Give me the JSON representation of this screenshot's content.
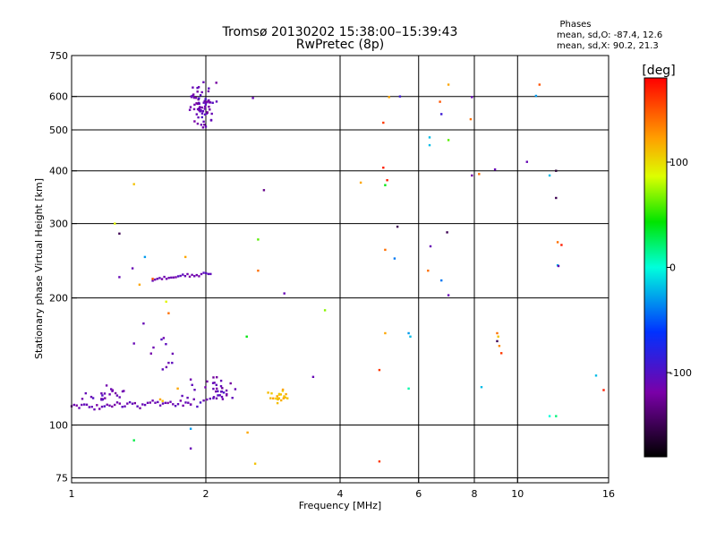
{
  "chart_data": {
    "type": "scatter",
    "title": "Tromsø 20130202 15:38:00–15:39:43",
    "subtitle": "RwPretec (8p)",
    "xlabel": "Frequency [MHz]",
    "ylabel": "Stationary phase Virtual Height [km]",
    "xscale": "log2",
    "yscale": "log",
    "xlim": [
      1,
      16
    ],
    "ylim": [
      73,
      750
    ],
    "xticks": [
      1,
      2,
      4,
      6,
      8,
      10,
      16
    ],
    "xtick_labels": [
      "1",
      "2",
      "4",
      "6",
      "8",
      "10",
      "16"
    ],
    "yticks": [
      75,
      100,
      200,
      300,
      400,
      500,
      600,
      750
    ],
    "ytick_labels": [
      "75",
      "100",
      "200",
      "300",
      "400",
      "500",
      "600",
      "750"
    ],
    "grid": true,
    "phases_title": "Phases",
    "phases_line1": "mean, sd,O: -87.4, 12.6",
    "phases_line2": "mean, sd,X:  90.2, 21.3",
    "colorbar": {
      "label": "[deg]",
      "range": [
        -180,
        180
      ],
      "tick_values": [
        100,
        0,
        -100
      ],
      "tick_labels": [
        "100",
        "0",
        "-100"
      ]
    },
    "traces": [
      {
        "f0": 1.0,
        "f1": 1.85,
        "h0": 110,
        "h1": 113,
        "n": 48,
        "jitter": 1.5,
        "phase": -110
      },
      {
        "f0": 1.85,
        "f1": 2.15,
        "h0": 113,
        "h1": 116,
        "n": 10,
        "jitter": 2,
        "phase": -110
      },
      {
        "f0": 1.52,
        "f1": 2.05,
        "h0": 221,
        "h1": 229,
        "n": 26,
        "jitter": 1.5,
        "phase": -110
      }
    ],
    "clusters": [
      {
        "fc": 1.95,
        "fs": 0.09,
        "hc": 570,
        "hs": 45,
        "n": 70,
        "phase": -110
      },
      {
        "fc": 1.18,
        "fs": 0.09,
        "hc": 117,
        "hs": 4,
        "n": 22,
        "phase": -110
      },
      {
        "fc": 2.1,
        "fs": 0.22,
        "hc": 121,
        "hs": 6,
        "n": 32,
        "phase": -110
      },
      {
        "fc": 2.9,
        "fs": 0.12,
        "hc": 117,
        "hs": 2.5,
        "n": 22,
        "phase": 110
      },
      {
        "fc": 1.62,
        "fs": 0.08,
        "hc": 148,
        "hs": 12,
        "n": 10,
        "phase": -110
      }
    ],
    "points": [
      [
        2.55,
        595,
        -110
      ],
      [
        2.7,
        360,
        -130
      ],
      [
        2.62,
        275,
        60
      ],
      [
        2.62,
        232,
        140
      ],
      [
        3.0,
        205,
        -110
      ],
      [
        3.7,
        187,
        70
      ],
      [
        3.48,
        130,
        -110
      ],
      [
        2.47,
        162,
        40
      ],
      [
        2.48,
        96,
        120
      ],
      [
        2.58,
        81,
        110
      ],
      [
        1.85,
        98,
        -30
      ],
      [
        1.85,
        88,
        -110
      ],
      [
        1.38,
        92,
        30
      ],
      [
        1.38,
        372,
        110
      ],
      [
        1.28,
        284,
        -150
      ],
      [
        1.25,
        300,
        90
      ],
      [
        1.37,
        235,
        -110
      ],
      [
        1.46,
        250,
        -30
      ],
      [
        1.52,
        222,
        150
      ],
      [
        1.28,
        224,
        -110
      ],
      [
        1.42,
        215,
        120
      ],
      [
        1.65,
        184,
        140
      ],
      [
        1.45,
        174,
        -110
      ],
      [
        1.38,
        156,
        -110
      ],
      [
        1.63,
        196,
        90
      ],
      [
        1.8,
        250,
        120
      ],
      [
        1.73,
        122,
        120
      ],
      [
        1.6,
        114,
        110
      ],
      [
        1.58,
        115,
        120
      ],
      [
        4.45,
        375,
        120
      ],
      [
        4.9,
        82,
        160
      ],
      [
        4.9,
        135,
        160
      ],
      [
        5.0,
        520,
        160
      ],
      [
        5.0,
        407,
        170
      ],
      [
        5.1,
        380,
        170
      ],
      [
        5.05,
        370,
        40
      ],
      [
        5.05,
        260,
        140
      ],
      [
        5.15,
        598,
        120
      ],
      [
        5.45,
        600,
        -90
      ],
      [
        5.38,
        295,
        -150
      ],
      [
        5.3,
        248,
        -40
      ],
      [
        5.05,
        165,
        120
      ],
      [
        5.7,
        165,
        -30
      ],
      [
        5.75,
        162,
        -20
      ],
      [
        5.7,
        122,
        10
      ],
      [
        6.35,
        480,
        -20
      ],
      [
        6.35,
        460,
        -20
      ],
      [
        6.38,
        265,
        -110
      ],
      [
        6.3,
        232,
        140
      ],
      [
        6.7,
        583,
        150
      ],
      [
        6.75,
        545,
        -90
      ],
      [
        6.75,
        220,
        -40
      ],
      [
        7.0,
        640,
        120
      ],
      [
        7.0,
        473,
        60
      ],
      [
        6.95,
        286,
        -150
      ],
      [
        7.0,
        203,
        -110
      ],
      [
        7.85,
        530,
        140
      ],
      [
        7.9,
        390,
        -120
      ],
      [
        7.9,
        598,
        -110
      ],
      [
        8.2,
        393,
        140
      ],
      [
        8.3,
        123,
        -20
      ],
      [
        8.9,
        403,
        -110
      ],
      [
        9.0,
        165,
        140
      ],
      [
        9.05,
        162,
        110
      ],
      [
        9.0,
        158,
        -150
      ],
      [
        9.1,
        154,
        130
      ],
      [
        9.2,
        148,
        160
      ],
      [
        10.5,
        420,
        -110
      ],
      [
        11.0,
        602,
        -30
      ],
      [
        11.2,
        640,
        150
      ],
      [
        11.8,
        390,
        -20
      ],
      [
        11.8,
        105,
        0
      ],
      [
        12.2,
        400,
        -160
      ],
      [
        12.2,
        345,
        -150
      ],
      [
        12.3,
        271,
        140
      ],
      [
        12.55,
        267,
        170
      ],
      [
        12.3,
        239,
        -20
      ],
      [
        12.35,
        238,
        -110
      ],
      [
        12.2,
        105,
        20
      ],
      [
        15.0,
        131,
        -20
      ],
      [
        15.6,
        121,
        170
      ]
    ]
  }
}
